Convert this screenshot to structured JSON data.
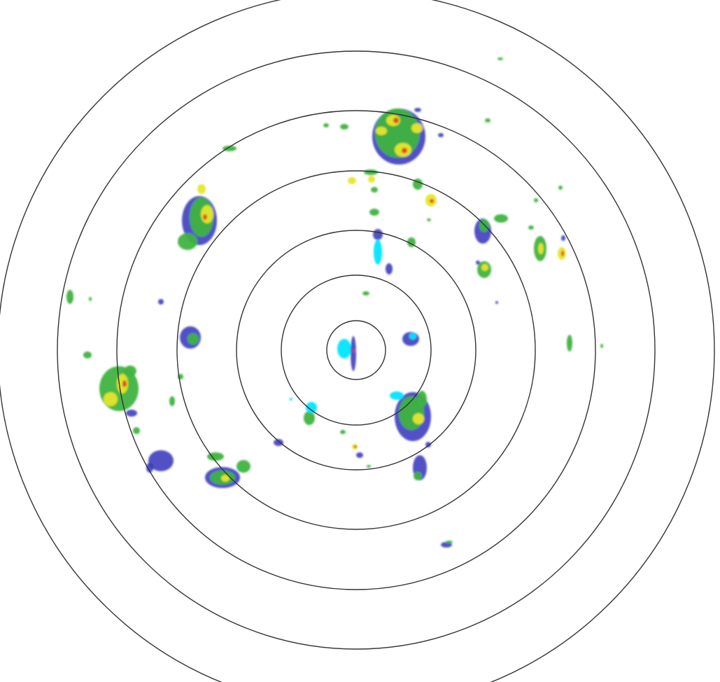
{
  "display": {
    "type": "radar-reflectivity-ppi",
    "range_ring_count": 7,
    "ring_color": "#333333",
    "background": "#ffffff"
  },
  "palette": {
    "light": "#00e5ff",
    "weak": "#3333bb",
    "moderate": "#3fb33f",
    "heavy": "#e6e62a",
    "intense": "#e63c1e"
  }
}
